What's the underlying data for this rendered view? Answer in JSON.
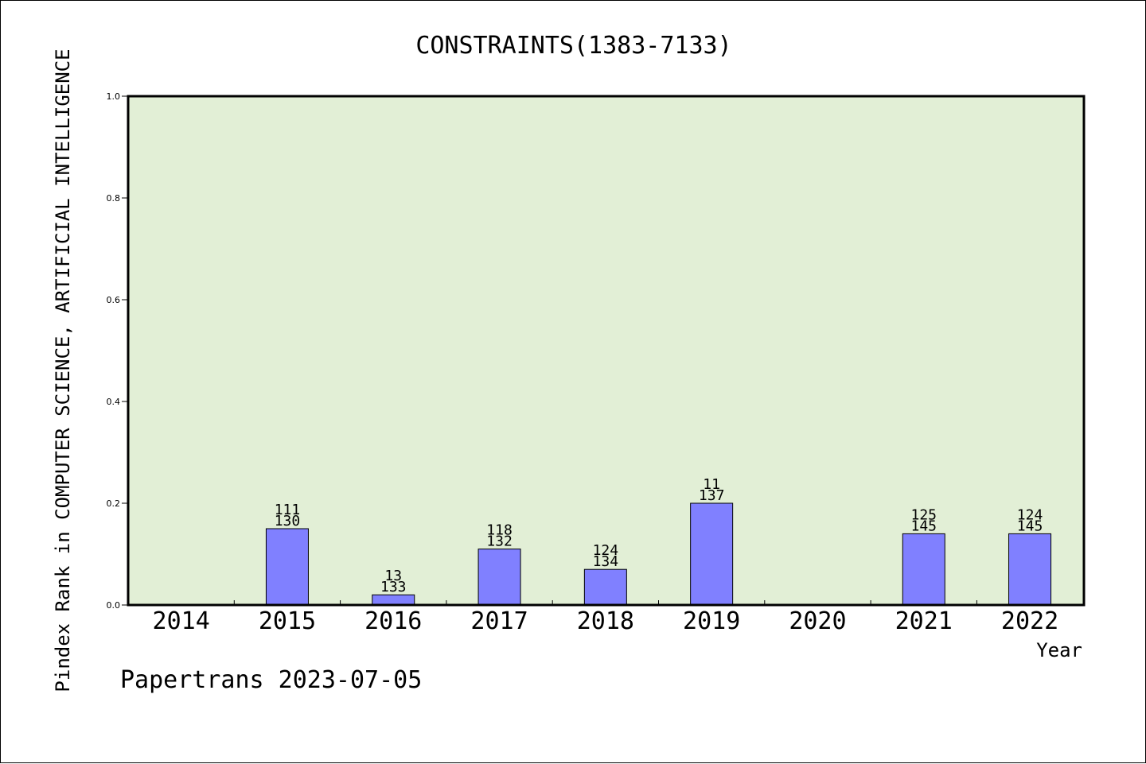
{
  "chart_data": {
    "type": "bar",
    "title": "CONSTRAINTS(1383-7133)",
    "xlabel": "Year",
    "ylabel": "Pindex Rank in COMPUTER SCIENCE, ARTIFICIAL INTELLIGENCE",
    "ylim": [
      0,
      1.0
    ],
    "yticks": [
      "0.0",
      "0.2",
      "0.4",
      "0.6",
      "0.8",
      "1.0"
    ],
    "categories": [
      "2014",
      "2015",
      "2016",
      "2017",
      "2018",
      "2019",
      "2020",
      "2021",
      "2022"
    ],
    "values": [
      0,
      0.15,
      0.02,
      0.11,
      0.07,
      0.2,
      0,
      0.14,
      0.14
    ],
    "labels_top": [
      "",
      "111",
      "13",
      "118",
      "124",
      "11",
      "",
      "125",
      "124"
    ],
    "labels_bottom": [
      "",
      "130",
      "133",
      "132",
      "134",
      "137",
      "",
      "145",
      "145"
    ],
    "grid": false,
    "legend": "none"
  },
  "footer": "Papertrans 2023-07-05",
  "colors": {
    "plot_bg": "#e2efd6",
    "bar_fill": "#8080ff",
    "axis": "#000000"
  }
}
